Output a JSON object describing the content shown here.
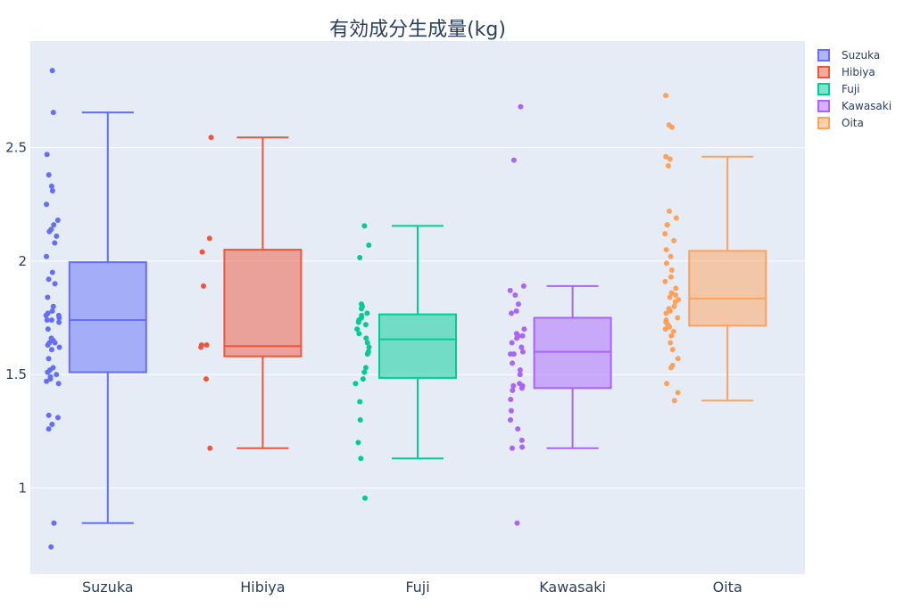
{
  "chart_data": {
    "type": "box",
    "title": "有効成分生成量(kg)",
    "xlabel": "",
    "ylabel": "",
    "ylim": [
      0.62,
      2.97
    ],
    "yticks": [
      "1",
      "1.5",
      "2",
      "2.5"
    ],
    "grid": true,
    "legend_position": "top-right",
    "boxpoints": "all",
    "series": [
      {
        "name": "Suzuka",
        "color": "#636efa",
        "q1": 1.51,
        "median": 1.74,
        "q3": 1.995,
        "lower_whisker": 0.845,
        "upper_whisker": 2.655,
        "points": [
          2.84,
          2.655,
          2.47,
          2.38,
          2.33,
          2.31,
          2.25,
          2.18,
          2.16,
          2.14,
          2.13,
          2.11,
          2.08,
          2.02,
          1.95,
          1.92,
          1.9,
          1.84,
          1.8,
          1.78,
          1.77,
          1.76,
          1.76,
          1.75,
          1.74,
          1.74,
          1.73,
          1.7,
          1.66,
          1.65,
          1.64,
          1.64,
          1.63,
          1.62,
          1.61,
          1.57,
          1.53,
          1.52,
          1.51,
          1.5,
          1.49,
          1.48,
          1.47,
          1.46,
          1.32,
          1.31,
          1.28,
          1.26,
          0.845,
          0.74
        ]
      },
      {
        "name": "Hibiya",
        "color": "#ef553b",
        "q1": 1.58,
        "median": 1.625,
        "q3": 2.05,
        "lower_whisker": 1.175,
        "upper_whisker": 2.545,
        "points": [
          2.545,
          2.1,
          2.04,
          1.89,
          1.63,
          1.63,
          1.62,
          1.48,
          1.175
        ]
      },
      {
        "name": "Fuji",
        "color": "#00cc96",
        "q1": 1.485,
        "median": 1.655,
        "q3": 1.765,
        "lower_whisker": 1.13,
        "upper_whisker": 2.155,
        "points": [
          2.155,
          2.07,
          2.015,
          1.81,
          1.8,
          1.79,
          1.77,
          1.76,
          1.75,
          1.74,
          1.73,
          1.72,
          1.7,
          1.68,
          1.66,
          1.64,
          1.62,
          1.6,
          1.59,
          1.53,
          1.51,
          1.48,
          1.46,
          1.38,
          1.3,
          1.2,
          1.13,
          0.955
        ]
      },
      {
        "name": "Kawasaki",
        "color": "#ab63fa",
        "q1": 1.44,
        "median": 1.6,
        "q3": 1.75,
        "lower_whisker": 1.175,
        "upper_whisker": 1.89,
        "points": [
          2.68,
          2.445,
          1.89,
          1.87,
          1.85,
          1.81,
          1.78,
          1.77,
          1.7,
          1.68,
          1.67,
          1.67,
          1.66,
          1.64,
          1.62,
          1.6,
          1.59,
          1.59,
          1.55,
          1.52,
          1.5,
          1.46,
          1.45,
          1.45,
          1.44,
          1.43,
          1.39,
          1.34,
          1.3,
          1.26,
          1.21,
          1.18,
          1.175,
          0.845
        ]
      },
      {
        "name": "Oita",
        "color": "#ffa15a",
        "q1": 1.715,
        "median": 1.835,
        "q3": 2.045,
        "lower_whisker": 1.385,
        "upper_whisker": 2.46,
        "points": [
          2.73,
          2.6,
          2.59,
          2.46,
          2.45,
          2.42,
          2.22,
          2.19,
          2.16,
          2.16,
          2.12,
          2.09,
          2.05,
          2.02,
          1.99,
          1.96,
          1.93,
          1.91,
          1.88,
          1.86,
          1.85,
          1.84,
          1.83,
          1.82,
          1.8,
          1.79,
          1.78,
          1.77,
          1.75,
          1.74,
          1.73,
          1.72,
          1.71,
          1.7,
          1.69,
          1.67,
          1.64,
          1.61,
          1.57,
          1.54,
          1.53,
          1.46,
          1.42,
          1.385
        ]
      }
    ]
  }
}
